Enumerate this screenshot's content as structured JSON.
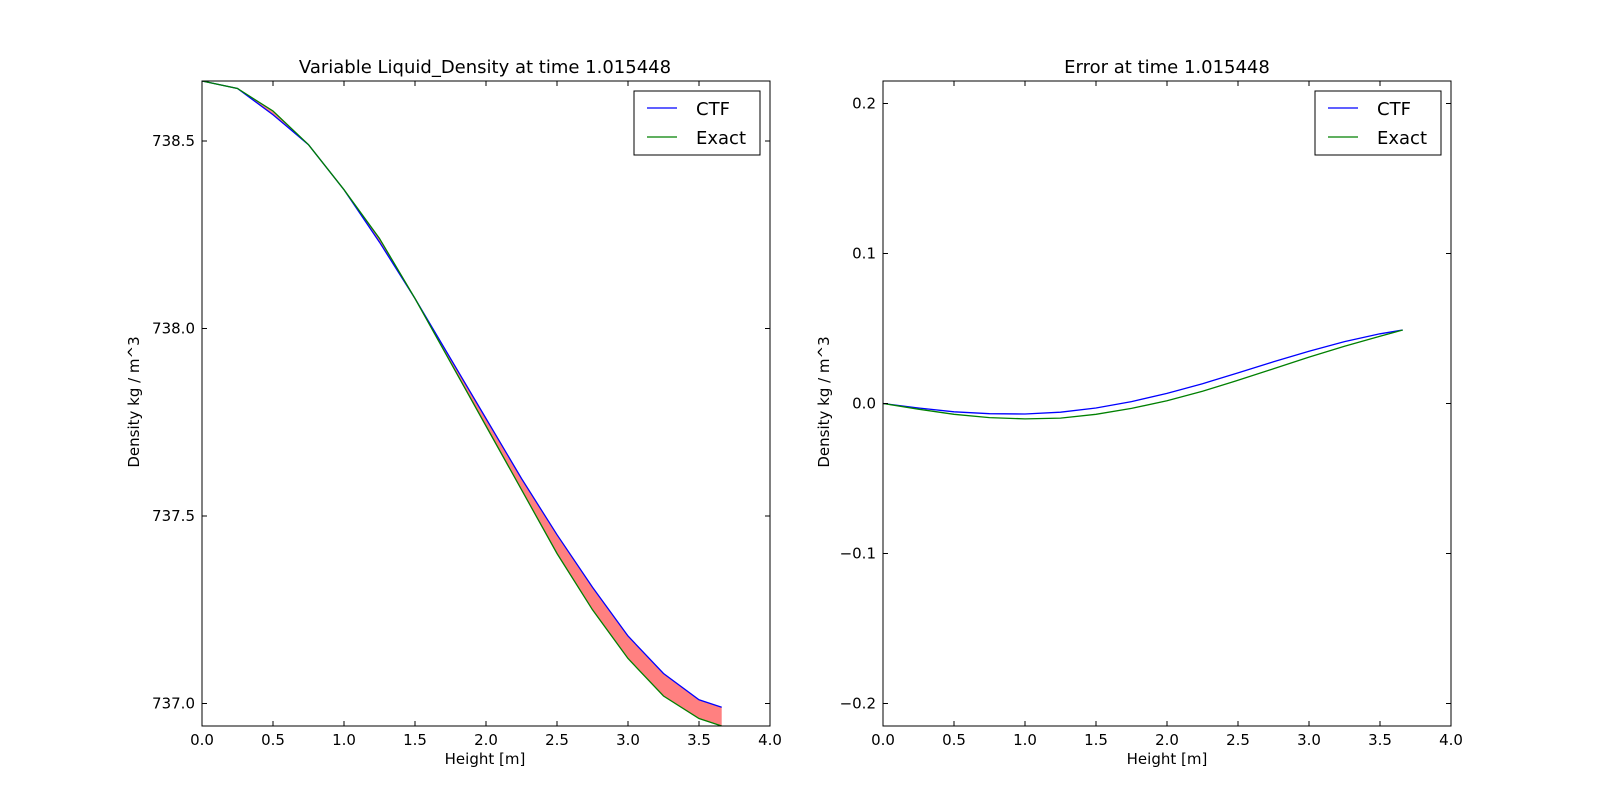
{
  "chart_data": [
    {
      "type": "line",
      "title": "Variable Liquid_Density at time 1.015448",
      "xlabel": "Height [m]",
      "ylabel": "Density kg / m^3",
      "xlim": [
        0.0,
        4.0
      ],
      "ylim": [
        736.94,
        738.66
      ],
      "xticks": [
        0.0,
        0.5,
        1.0,
        1.5,
        2.0,
        2.5,
        3.0,
        3.5,
        4.0
      ],
      "xtick_labels": [
        "0.0",
        "0.5",
        "1.0",
        "1.5",
        "2.0",
        "2.5",
        "3.0",
        "3.5",
        "4.0"
      ],
      "yticks": [
        737.0,
        737.5,
        738.0,
        738.5
      ],
      "ytick_labels": [
        "737.0",
        "737.5",
        "738.0",
        "738.5"
      ],
      "legend_position": "top-right",
      "grid": false,
      "fill_between": {
        "series": [
          "CTF",
          "Exact"
        ],
        "color": "#ff8080"
      },
      "x": [
        0.0,
        0.25,
        0.5,
        0.75,
        1.0,
        1.25,
        1.5,
        1.75,
        2.0,
        2.25,
        2.5,
        2.75,
        3.0,
        3.25,
        3.5,
        3.66
      ],
      "series": [
        {
          "name": "CTF",
          "color": "#0000ff",
          "values": [
            738.66,
            738.64,
            738.57,
            738.49,
            738.37,
            738.23,
            738.08,
            737.92,
            737.76,
            737.6,
            737.45,
            737.31,
            737.18,
            737.08,
            737.01,
            736.99
          ]
        },
        {
          "name": "Exact",
          "color": "#008000",
          "values": [
            738.66,
            738.64,
            738.58,
            738.49,
            738.37,
            738.24,
            738.08,
            737.91,
            737.74,
            737.57,
            737.4,
            737.25,
            737.12,
            737.02,
            736.96,
            736.94
          ]
        }
      ]
    },
    {
      "type": "line",
      "title": "Error at time 1.015448",
      "xlabel": "Height [m]",
      "ylabel": "Density kg / m^3",
      "xlim": [
        0.0,
        4.0
      ],
      "ylim": [
        -0.215,
        0.215
      ],
      "xticks": [
        0.0,
        0.5,
        1.0,
        1.5,
        2.0,
        2.5,
        3.0,
        3.5,
        4.0
      ],
      "xtick_labels": [
        "0.0",
        "0.5",
        "1.0",
        "1.5",
        "2.0",
        "2.5",
        "3.0",
        "3.5",
        "4.0"
      ],
      "yticks": [
        -0.2,
        -0.1,
        0.0,
        0.1,
        0.2
      ],
      "ytick_labels": [
        "−0.2",
        "−0.1",
        "0.0",
        "0.1",
        "0.2"
      ],
      "legend_position": "top-right",
      "grid": false,
      "x": [
        0.0,
        0.25,
        0.5,
        0.75,
        1.0,
        1.25,
        1.5,
        1.75,
        2.0,
        2.25,
        2.5,
        2.75,
        3.0,
        3.25,
        3.5,
        3.66
      ],
      "series": [
        {
          "name": "CTF",
          "color": "#0000ff",
          "values": [
            0.0,
            -0.003,
            -0.0055,
            -0.0068,
            -0.007,
            -0.0058,
            -0.003,
            0.0013,
            0.0067,
            0.0132,
            0.0204,
            0.0278,
            0.0349,
            0.0413,
            0.0465,
            0.049
          ]
        },
        {
          "name": "Exact",
          "color": "#008000",
          "values": [
            0.0,
            -0.0038,
            -0.0072,
            -0.0094,
            -0.0103,
            -0.0097,
            -0.0072,
            -0.0033,
            0.0018,
            0.0082,
            0.0155,
            0.0231,
            0.0309,
            0.0382,
            0.0448,
            0.049
          ]
        }
      ]
    }
  ]
}
